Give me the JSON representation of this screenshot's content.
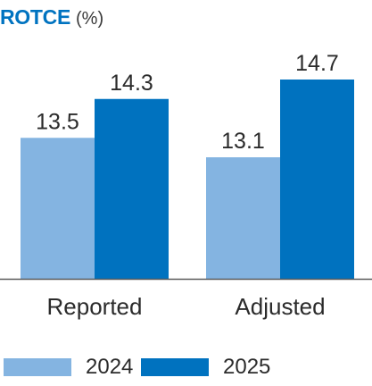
{
  "chart_data": {
    "type": "bar",
    "title": "ROTCE",
    "unit": "(%)",
    "categories": [
      "Reported",
      "Adjusted"
    ],
    "series": [
      {
        "name": "2024",
        "values": [
          13.5,
          13.1
        ],
        "labels": [
          "13.5",
          "13.1"
        ],
        "color": "#84b4e1"
      },
      {
        "name": "2025",
        "values": [
          14.3,
          14.7
        ],
        "labels": [
          "14.3",
          "14.7"
        ],
        "color": "#0072bf"
      }
    ],
    "ylim": [
      10.6,
      14.7
    ],
    "grid": false,
    "legend": "bottom",
    "axis_color": "#5a5a5a"
  }
}
